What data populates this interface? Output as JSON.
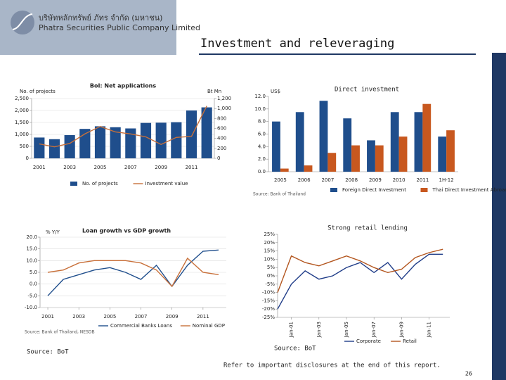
{
  "header": {
    "company_thai": "บริษัทหลักทรัพย์ ภัทร จำกัด (มหาชน)",
    "company": "Phatra Securities Public Company Limited",
    "title": "Investment and releveraging"
  },
  "chart_data": [
    {
      "type": "bar",
      "title": "BoI: Net applications",
      "ylabel": "No. of projects",
      "y2label": "Bt Mn",
      "grid": true,
      "categories": [
        "2001",
        null,
        "2003",
        null,
        "2005",
        null,
        "2007",
        null,
        "2009",
        null,
        "2011",
        null
      ],
      "series": [
        {
          "name": "No. of projects",
          "color": "#1f4e8c",
          "values": [
            870,
            800,
            970,
            1230,
            1340,
            1300,
            1250,
            1480,
            1490,
            1510,
            2000,
            2130
          ]
        },
        {
          "name": "Investment value",
          "type": "line",
          "axis": "y2",
          "color": "#c8703a",
          "values": [
            290,
            230,
            300,
            490,
            640,
            530,
            490,
            430,
            280,
            420,
            440,
            1050
          ]
        }
      ],
      "ylim": [
        0,
        2500
      ],
      "yticks": [
        0,
        500,
        {
          "value": 1000,
          "label": "1,000"
        },
        {
          "value": 1500,
          "label": "1,500"
        },
        {
          "value": 2000,
          "label": "2,000"
        },
        {
          "value": 2500,
          "label": "2,500"
        }
      ],
      "y2lim": [
        0,
        1200
      ],
      "y2ticks": [
        0,
        200,
        400,
        600,
        800,
        {
          "value": 1000,
          "label": "1,000"
        },
        {
          "value": 1200,
          "label": "1,200"
        }
      ]
    },
    {
      "type": "bar",
      "title": "Direct investment",
      "ylabel": "US$",
      "source": "Source: Bank of Thailand",
      "categories": [
        "2005",
        "2006",
        "2007",
        "2008",
        "2009",
        "2010",
        "2011",
        "1H-12"
      ],
      "series": [
        {
          "name": "Foreign Direct Investment",
          "color": "#1f4e8c",
          "values": [
            8.0,
            9.5,
            11.3,
            8.5,
            5.0,
            9.5,
            9.5,
            5.6
          ]
        },
        {
          "name": "Thai Direct Investment Abroad",
          "color": "#c8581f",
          "values": [
            0.5,
            1.0,
            3.0,
            4.2,
            4.2,
            5.6,
            10.8,
            6.6
          ]
        }
      ],
      "ylim": [
        0,
        12
      ],
      "yticks": [
        {
          "value": 0,
          "label": "0.0"
        },
        {
          "value": 2,
          "label": "2.0"
        },
        {
          "value": 4,
          "label": "4.0"
        },
        {
          "value": 6,
          "label": "6.0"
        },
        {
          "value": 8,
          "label": "8.0"
        },
        {
          "value": 10,
          "label": "10.0"
        },
        {
          "value": 12,
          "label": "12.0"
        }
      ]
    },
    {
      "type": "line",
      "title": "Loan growth vs GDP growth",
      "ylabel": "% Y/Y",
      "source": "Source: Bank of Thailand, NESDB",
      "grid": true,
      "x": [
        2001,
        2002,
        2003,
        2004,
        2005,
        2006,
        2007,
        2008,
        2009,
        2010,
        2011,
        2012
      ],
      "xlim": [
        2000.5,
        2012.5
      ],
      "xticks": [
        2001,
        2003,
        2005,
        2007,
        2009,
        2011
      ],
      "series": [
        {
          "name": "Commercial Banks Loans",
          "color": "#1f4e8c",
          "values": [
            -5,
            2,
            4,
            6,
            7,
            5,
            2,
            8,
            -1,
            8,
            14,
            14.5
          ]
        },
        {
          "name": "Nominal GDP",
          "color": "#c8703a",
          "values": [
            5,
            6,
            9,
            10,
            10,
            10,
            9,
            6,
            -1,
            11,
            5,
            4
          ]
        }
      ],
      "ylim": [
        -10,
        20
      ],
      "yticks": [
        {
          "value": -10,
          "label": "-10.0"
        },
        {
          "value": -5,
          "label": "-5.0"
        },
        {
          "value": 0,
          "label": "0.0"
        },
        {
          "value": 5,
          "label": "5.0"
        },
        {
          "value": 10,
          "label": "10.0"
        },
        {
          "value": 15,
          "label": "15.0"
        },
        {
          "value": 20,
          "label": "20.0"
        }
      ]
    },
    {
      "type": "line",
      "title": "Strong retail lending",
      "x": [
        2000,
        2001,
        2002,
        2003,
        2004,
        2005,
        2006,
        2007,
        2008,
        2009,
        2010,
        2011,
        2012
      ],
      "xlim": [
        2000,
        2012.5
      ],
      "xticks": [
        {
          "value": 2001,
          "label": "Jan-01"
        },
        {
          "value": 2003,
          "label": "Jan-03"
        },
        {
          "value": 2005,
          "label": "Jan-05"
        },
        {
          "value": 2007,
          "label": "Jan-07"
        },
        {
          "value": 2009,
          "label": "Jan-09"
        },
        {
          "value": 2011,
          "label": "Jan-11"
        }
      ],
      "series": [
        {
          "name": "Corporate",
          "color": "#1f3c88",
          "values": [
            -20,
            -5,
            3,
            -2,
            0,
            5,
            8,
            2,
            8,
            -2,
            7,
            13,
            13
          ]
        },
        {
          "name": "Retail",
          "color": "#b3561f",
          "values": [
            -10,
            12,
            8,
            6,
            9,
            12,
            9,
            5,
            2,
            4,
            11,
            14,
            16
          ]
        }
      ],
      "ylim": [
        -25,
        25
      ],
      "yticks": [
        {
          "value": -25,
          "label": "-25%"
        },
        {
          "value": -20,
          "label": "-20%"
        },
        {
          "value": -15,
          "label": "-15%"
        },
        {
          "value": -10,
          "label": "-10%"
        },
        {
          "value": -5,
          "label": "-5%"
        },
        {
          "value": 0,
          "label": "0%"
        },
        {
          "value": 5,
          "label": "5%"
        },
        {
          "value": 10,
          "label": "10%"
        },
        {
          "value": 15,
          "label": "15%"
        },
        {
          "value": 20,
          "label": "20%"
        },
        {
          "value": 25,
          "label": "25%"
        }
      ]
    }
  ],
  "notes": [
    "Source: BoT",
    "Source: BoT"
  ],
  "footer": {
    "disclaimer": "Refer to important disclosures at the end of this report.",
    "page": 26
  }
}
